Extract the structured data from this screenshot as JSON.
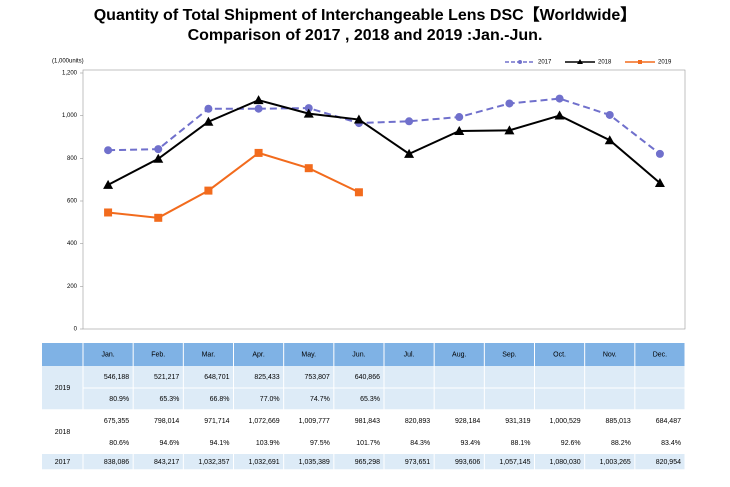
{
  "chart_data": {
    "type": "line",
    "title": "Quantity of Total Shipment of Interchangeable Lens DSC【Worldwide】",
    "subtitle": "Comparison of 2017 , 2018 and 2019 :Jan.-Jun.",
    "y_unit": "(1,000units)",
    "categories": [
      "Jan.",
      "Feb.",
      "Mar.",
      "Apr.",
      "May.",
      "Jun.",
      "Jul.",
      "Aug.",
      "Sep.",
      "Oct.",
      "Nov.",
      "Dec."
    ],
    "ylim": [
      0,
      1200
    ],
    "yticks": [
      0,
      200,
      400,
      600,
      800,
      {
        "value": 1000,
        "label": "1,000"
      },
      {
        "value": 1200,
        "label": "1,200"
      }
    ],
    "series": [
      {
        "name": "2017",
        "color": "#7070cc",
        "dash": true,
        "marker": "circle",
        "values": [
          838.086,
          843.217,
          1032.357,
          1032.691,
          1035.389,
          965.298,
          973.651,
          993.606,
          1057.145,
          1080.03,
          1003.265,
          820.954
        ],
        "value_labels": [
          "838,086",
          "843,217",
          "1,032,357",
          "1,032,691",
          "1,035,389",
          "965,298",
          "973,651",
          "993,606",
          "1,057,145",
          "1,080,030",
          "1,003,265",
          "820,954"
        ]
      },
      {
        "name": "2018",
        "color": "#000000",
        "dash": false,
        "marker": "triangle",
        "values": [
          675.355,
          798.014,
          971.714,
          1072.669,
          1009.777,
          981.843,
          820.893,
          928.184,
          931.319,
          1000.529,
          885.013,
          684.487
        ],
        "value_labels": [
          "675,355",
          "798,014",
          "971,714",
          "1,072,669",
          "1,009,777",
          "981,843",
          "820,893",
          "928,184",
          "931,319",
          "1,000,529",
          "885,013",
          "684,487"
        ],
        "growth_labels": [
          "80.6%",
          "94.6%",
          "94.1%",
          "103.9%",
          "97.5%",
          "101.7%",
          "84.3%",
          "93.4%",
          "88.1%",
          "92.6%",
          "88.2%",
          "83.4%"
        ]
      },
      {
        "name": "2019",
        "color": "#f26b1d",
        "dash": false,
        "marker": "square",
        "values": [
          546.188,
          521.217,
          648.701,
          825.433,
          753.807,
          640.866,
          null,
          null,
          null,
          null,
          null,
          null
        ],
        "value_labels": [
          "546,188",
          "521,217",
          "648,701",
          "825,433",
          "753,807",
          "640,866",
          null,
          null,
          null,
          null,
          null,
          null
        ],
        "growth_labels": [
          "80.9%",
          "65.3%",
          "66.8%",
          "77.0%",
          "74.7%",
          "65.3%",
          null,
          null,
          null,
          null,
          null,
          null
        ]
      }
    ],
    "table_order": [
      2,
      1,
      0
    ]
  }
}
